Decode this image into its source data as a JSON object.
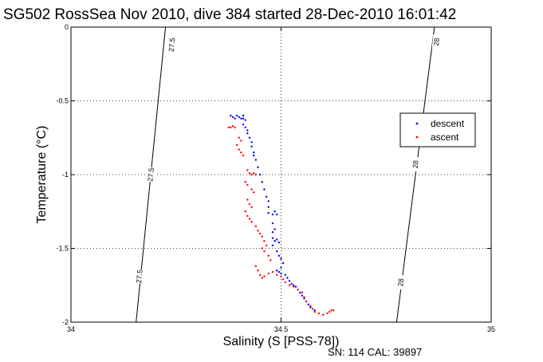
{
  "chart_data": {
    "type": "scatter",
    "title": "SG502 RossSea Nov 2010, dive 384 started 28-Dec-2010 16:01:42",
    "xlabel": "Salinity (S [PSS-78])",
    "ylabel": "Temperature (°C)",
    "footer": "SN: 114  CAL: 39897",
    "xlim": [
      34,
      35
    ],
    "ylim": [
      -2,
      0
    ],
    "x_ticks": [
      {
        "value": 34,
        "label": "34"
      },
      {
        "value": 34.5,
        "label": "34.5"
      },
      {
        "value": 35,
        "label": "35"
      }
    ],
    "y_ticks": [
      {
        "value": 0,
        "label": "0"
      },
      {
        "value": -0.5,
        "label": "-0.5"
      },
      {
        "value": -1,
        "label": "-1"
      },
      {
        "value": -1.5,
        "label": "-1.5"
      },
      {
        "value": -2,
        "label": "-2"
      }
    ],
    "grid": true,
    "legend": {
      "position": "right",
      "entries": [
        "descent",
        "ascent"
      ]
    },
    "contours": [
      {
        "label": "27.5",
        "points": [
          [
            34.155,
            -2.0
          ],
          [
            34.225,
            0.0
          ]
        ],
        "label_positions": [
          [
            34.163,
            -1.69
          ],
          [
            34.19,
            -1.0
          ],
          [
            34.24,
            -0.12
          ]
        ]
      },
      {
        "label": "28",
        "points": [
          [
            34.775,
            -2.0
          ],
          [
            34.865,
            0.0
          ]
        ],
        "label_positions": [
          [
            34.785,
            -1.73
          ],
          [
            34.82,
            -0.93
          ],
          [
            34.87,
            -0.1
          ]
        ]
      }
    ],
    "series": [
      {
        "name": "descent",
        "color": "#0000ff",
        "points": [
          [
            34.38,
            -0.6
          ],
          [
            34.385,
            -0.61
          ],
          [
            34.39,
            -0.62
          ],
          [
            34.395,
            -0.6
          ],
          [
            34.4,
            -0.61
          ],
          [
            34.405,
            -0.62
          ],
          [
            34.41,
            -0.6
          ],
          [
            34.41,
            -0.62
          ],
          [
            34.415,
            -0.63
          ],
          [
            34.41,
            -0.66
          ],
          [
            34.415,
            -0.68
          ],
          [
            34.42,
            -0.7
          ],
          [
            34.42,
            -0.72
          ],
          [
            34.425,
            -0.75
          ],
          [
            34.43,
            -0.78
          ],
          [
            34.43,
            -0.81
          ],
          [
            34.435,
            -0.85
          ],
          [
            34.435,
            -0.87
          ],
          [
            34.44,
            -0.9
          ],
          [
            34.445,
            -0.95
          ],
          [
            34.45,
            -1.0
          ],
          [
            34.455,
            -1.05
          ],
          [
            34.46,
            -1.1
          ],
          [
            34.465,
            -1.15
          ],
          [
            34.47,
            -1.18
          ],
          [
            34.47,
            -1.22
          ],
          [
            34.47,
            -1.26
          ],
          [
            34.48,
            -1.27
          ],
          [
            34.485,
            -1.25
          ],
          [
            34.49,
            -1.27
          ],
          [
            34.48,
            -1.33
          ],
          [
            34.485,
            -1.37
          ],
          [
            34.48,
            -1.39
          ],
          [
            34.48,
            -1.43
          ],
          [
            34.485,
            -1.45
          ],
          [
            34.49,
            -1.44
          ],
          [
            34.495,
            -1.46
          ],
          [
            34.48,
            -1.48
          ],
          [
            34.49,
            -1.52
          ],
          [
            34.495,
            -1.55
          ],
          [
            34.5,
            -1.57
          ],
          [
            34.505,
            -1.6
          ],
          [
            34.5,
            -1.63
          ],
          [
            34.49,
            -1.65
          ],
          [
            34.495,
            -1.66
          ],
          [
            34.5,
            -1.67
          ],
          [
            34.51,
            -1.68
          ],
          [
            34.515,
            -1.7
          ],
          [
            34.52,
            -1.72
          ],
          [
            34.525,
            -1.74
          ],
          [
            34.53,
            -1.75
          ],
          [
            34.535,
            -1.76
          ],
          [
            34.54,
            -1.78
          ],
          [
            34.545,
            -1.8
          ],
          [
            34.55,
            -1.82
          ],
          [
            34.555,
            -1.84
          ],
          [
            34.56,
            -1.86
          ],
          [
            34.565,
            -1.88
          ],
          [
            34.57,
            -1.9
          ],
          [
            34.58,
            -1.92
          ]
        ]
      },
      {
        "name": "ascent",
        "color": "#ff0000",
        "points": [
          [
            34.375,
            -0.68
          ],
          [
            34.38,
            -0.68
          ],
          [
            34.385,
            -0.67
          ],
          [
            34.39,
            -0.68
          ],
          [
            34.4,
            -0.75
          ],
          [
            34.405,
            -0.77
          ],
          [
            34.395,
            -0.8
          ],
          [
            34.4,
            -0.83
          ],
          [
            34.405,
            -0.85
          ],
          [
            34.41,
            -0.87
          ],
          [
            34.42,
            -0.97
          ],
          [
            34.425,
            -0.99
          ],
          [
            34.43,
            -1.0
          ],
          [
            34.435,
            -0.99
          ],
          [
            34.44,
            -1.0
          ],
          [
            34.415,
            -1.05
          ],
          [
            34.42,
            -1.07
          ],
          [
            34.43,
            -1.1
          ],
          [
            34.435,
            -1.12
          ],
          [
            34.42,
            -1.17
          ],
          [
            34.425,
            -1.2
          ],
          [
            34.43,
            -1.22
          ],
          [
            34.415,
            -1.25
          ],
          [
            34.42,
            -1.28
          ],
          [
            34.425,
            -1.3
          ],
          [
            34.43,
            -1.32
          ],
          [
            34.44,
            -1.35
          ],
          [
            34.445,
            -1.38
          ],
          [
            34.45,
            -1.4
          ],
          [
            34.455,
            -1.42
          ],
          [
            34.46,
            -1.45
          ],
          [
            34.465,
            -1.48
          ],
          [
            34.455,
            -1.5
          ],
          [
            34.46,
            -1.52
          ],
          [
            34.47,
            -1.55
          ],
          [
            34.475,
            -1.58
          ],
          [
            34.44,
            -1.62
          ],
          [
            34.445,
            -1.65
          ],
          [
            34.45,
            -1.68
          ],
          [
            34.455,
            -1.7
          ],
          [
            34.46,
            -1.69
          ],
          [
            34.47,
            -1.67
          ],
          [
            34.48,
            -1.66
          ],
          [
            34.49,
            -1.68
          ],
          [
            34.5,
            -1.69
          ],
          [
            34.505,
            -1.71
          ],
          [
            34.51,
            -1.73
          ],
          [
            34.52,
            -1.75
          ],
          [
            34.53,
            -1.76
          ],
          [
            34.54,
            -1.78
          ],
          [
            34.55,
            -1.8
          ],
          [
            34.555,
            -1.83
          ],
          [
            34.56,
            -1.86
          ],
          [
            34.57,
            -1.89
          ],
          [
            34.575,
            -1.91
          ],
          [
            34.58,
            -1.93
          ],
          [
            34.59,
            -1.94
          ],
          [
            34.6,
            -1.95
          ],
          [
            34.61,
            -1.94
          ],
          [
            34.615,
            -1.93
          ],
          [
            34.62,
            -1.92
          ],
          [
            34.625,
            -1.92
          ]
        ]
      }
    ]
  }
}
